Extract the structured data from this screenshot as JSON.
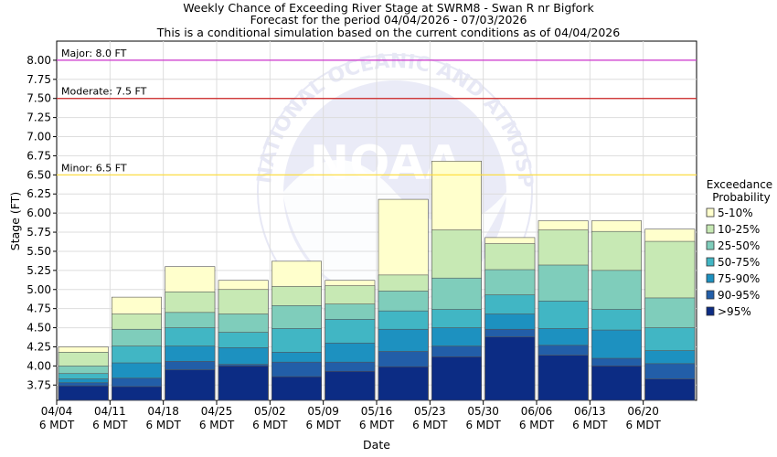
{
  "chart_data": {
    "type": "bar",
    "title": "Weekly Chance of Exceeding River Stage at SWRM8 - Swan R nr Bigfork",
    "subtitle1": "Forecast for the period 04/04/2026 - 07/03/2026",
    "subtitle2": "This is a conditional simulation based on the current conditions as of 04/04/2026",
    "xlabel": "Date",
    "ylabel": "Stage (FT)",
    "ylim": [
      3.55,
      8.25
    ],
    "yticks": [
      "3.75",
      "4.00",
      "4.25",
      "4.50",
      "4.75",
      "5.00",
      "5.25",
      "5.50",
      "5.75",
      "6.00",
      "6.25",
      "6.50",
      "6.75",
      "7.00",
      "7.25",
      "7.50",
      "7.75",
      "8.00"
    ],
    "xticks": [
      {
        "date": "04/04",
        "tz": "6 MDT"
      },
      {
        "date": "04/11",
        "tz": "6 MDT"
      },
      {
        "date": "04/18",
        "tz": "6 MDT"
      },
      {
        "date": "04/25",
        "tz": "6 MDT"
      },
      {
        "date": "05/02",
        "tz": "6 MDT"
      },
      {
        "date": "05/09",
        "tz": "6 MDT"
      },
      {
        "date": "05/16",
        "tz": "6 MDT"
      },
      {
        "date": "05/23",
        "tz": "6 MDT"
      },
      {
        "date": "05/30",
        "tz": "6 MDT"
      },
      {
        "date": "06/06",
        "tz": "6 MDT"
      },
      {
        "date": "06/13",
        "tz": "6 MDT"
      },
      {
        "date": "06/20",
        "tz": "6 MDT"
      }
    ],
    "thresholds": [
      {
        "label": "Major: 8.0 FT",
        "value": 8.0,
        "color": "#cc33cc"
      },
      {
        "label": "Moderate: 7.5 FT",
        "value": 7.5,
        "color": "#cc2222"
      },
      {
        "label": "Minor: 6.5 FT",
        "value": 6.5,
        "color": "#ffdd33"
      }
    ],
    "legend": {
      "title_line1": "Exceedance",
      "title_line2": "Probability",
      "placement": "right",
      "items": [
        {
          "label": "5-10%",
          "color": "#ffffcc"
        },
        {
          "label": "10-25%",
          "color": "#c7e9b4"
        },
        {
          "label": "25-50%",
          "color": "#7fcdbb"
        },
        {
          "label": "50-75%",
          "color": "#41b6c4"
        },
        {
          "label": "75-90%",
          "color": "#1d91c0"
        },
        {
          "label": "90-95%",
          "color": "#225ea8"
        },
        {
          "label": ">95%",
          "color": "#0c2c84"
        }
      ]
    },
    "series": [
      {
        "name": ">95%",
        "values": [
          3.74,
          3.73,
          3.95,
          4.0,
          3.86,
          3.93,
          3.99,
          4.12,
          4.38,
          4.14,
          4.0,
          3.83
        ]
      },
      {
        "name": "90-95%",
        "values": [
          3.78,
          3.84,
          4.06,
          4.02,
          4.05,
          4.05,
          4.19,
          4.26,
          4.48,
          4.27,
          4.1,
          4.03
        ]
      },
      {
        "name": "75-90%",
        "values": [
          3.83,
          4.04,
          4.26,
          4.24,
          4.18,
          4.3,
          4.48,
          4.5,
          4.68,
          4.49,
          4.47,
          4.2
        ]
      },
      {
        "name": "50-75%",
        "values": [
          3.9,
          4.26,
          4.5,
          4.44,
          4.49,
          4.61,
          4.72,
          4.74,
          4.93,
          4.85,
          4.74,
          4.5
        ]
      },
      {
        "name": "25-50%",
        "values": [
          4.0,
          4.48,
          4.7,
          4.68,
          4.79,
          4.81,
          4.98,
          5.15,
          5.26,
          5.32,
          5.25,
          4.89
        ]
      },
      {
        "name": "10-25%",
        "values": [
          4.18,
          4.68,
          4.97,
          5.0,
          5.04,
          5.05,
          5.19,
          5.78,
          5.6,
          5.78,
          5.76,
          5.63
        ]
      },
      {
        "name": "5-10%",
        "values": [
          4.25,
          4.9,
          5.3,
          5.12,
          5.37,
          5.12,
          6.18,
          6.68,
          5.68,
          5.9,
          5.9,
          5.79
        ]
      }
    ],
    "watermark": {
      "logo_text": "NOAA",
      "ring_text": "NATIONAL OCEANIC AND ATMOSPHERIC ADMINISTRATION"
    }
  }
}
